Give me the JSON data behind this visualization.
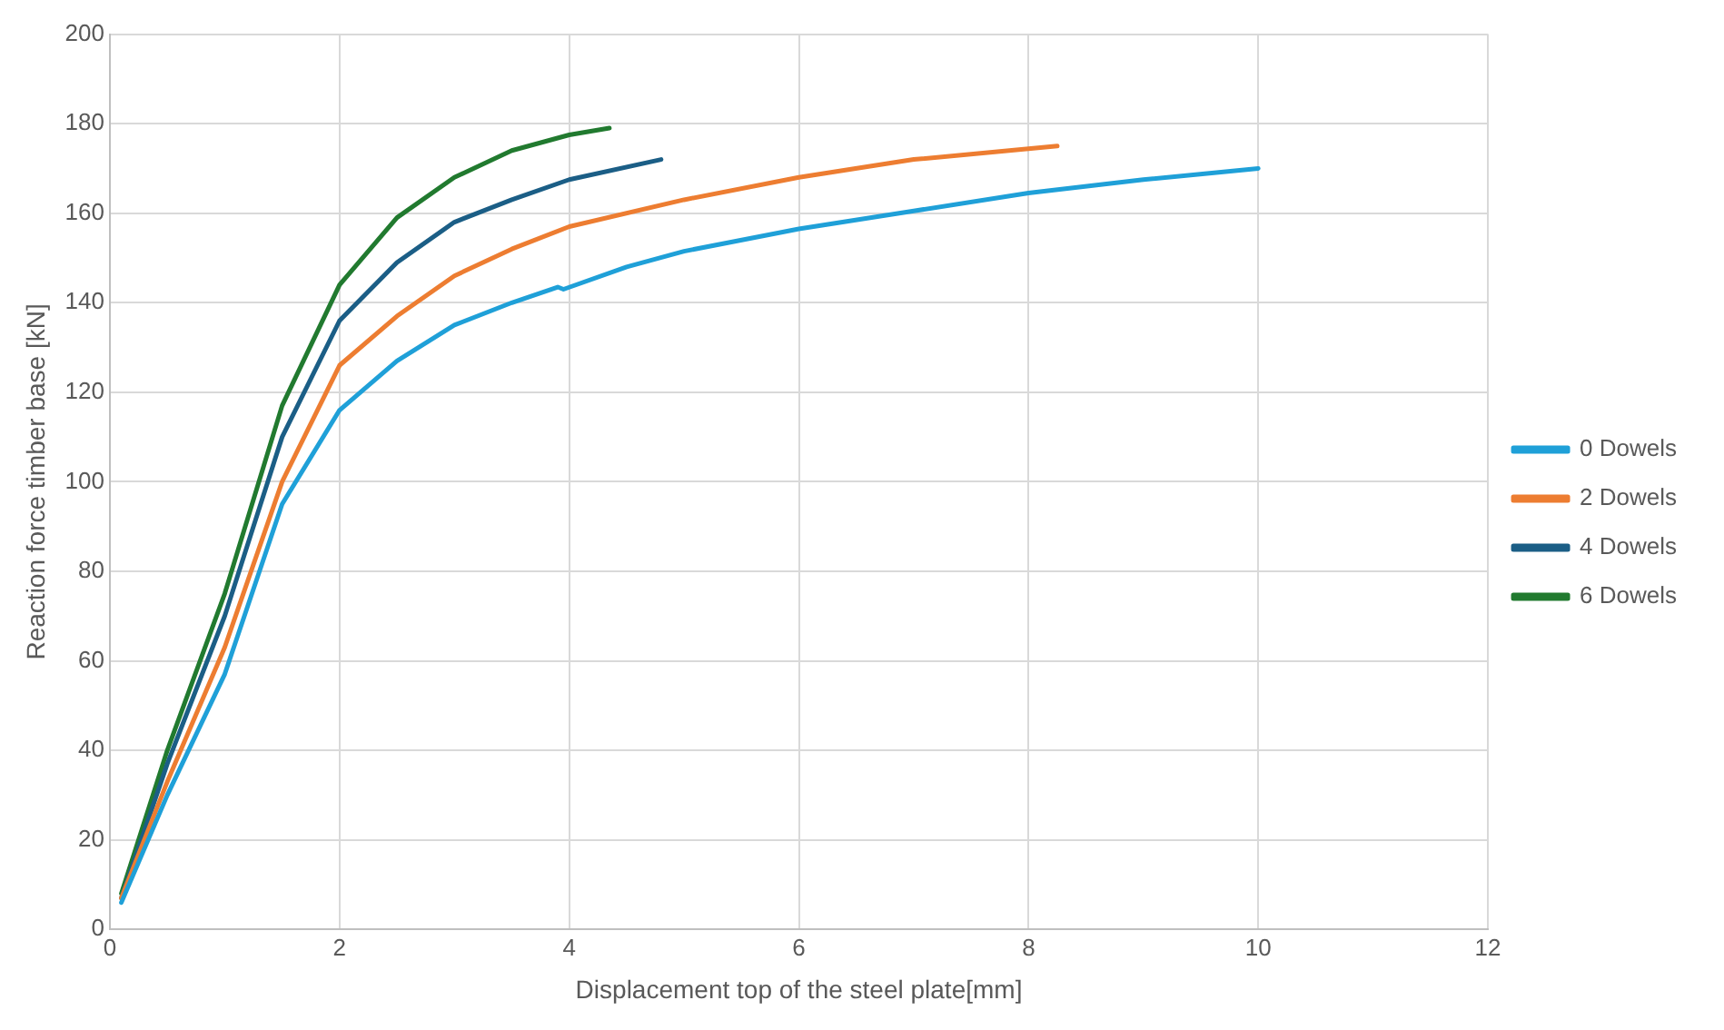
{
  "chart_data": {
    "type": "line",
    "xlabel": "Displacement top of the steel plate[mm]",
    "ylabel": "Reaction force timber base [kN]",
    "xlim": [
      0,
      12
    ],
    "xticks": [
      0,
      2,
      4,
      6,
      8,
      10,
      12
    ],
    "ylim": [
      0,
      200
    ],
    "yticks": [
      0,
      20,
      40,
      60,
      80,
      100,
      120,
      140,
      160,
      180,
      200
    ],
    "grid": true,
    "legend": "right",
    "marker": "none",
    "line_style": "solid",
    "series": [
      {
        "name": "0 Dowels",
        "color": "#1fa0d8",
        "x": [
          0.1,
          0.5,
          1,
          1.5,
          2,
          2.5,
          3,
          3.5,
          3.9,
          3.95,
          4.5,
          5,
          6,
          7,
          8,
          9,
          10
        ],
        "values": [
          6,
          30,
          57,
          95,
          116,
          127,
          135,
          140,
          143.5,
          143,
          148,
          151.5,
          156.5,
          160.5,
          164.5,
          167.5,
          170
        ]
      },
      {
        "name": "2 Dowels",
        "color": "#ed7d31",
        "x": [
          0.1,
          0.5,
          1,
          1.5,
          2,
          2.5,
          3,
          3.5,
          4,
          5,
          6,
          7,
          8.25
        ],
        "values": [
          7,
          33,
          63,
          100,
          126,
          137,
          146,
          152,
          157,
          163,
          168,
          172,
          175
        ]
      },
      {
        "name": "4 Dowels",
        "color": "#1b5e86",
        "x": [
          0.1,
          0.5,
          1,
          1.5,
          2,
          2.5,
          3,
          3.5,
          4,
          4.8
        ],
        "values": [
          7,
          37,
          70,
          110,
          136,
          149,
          158,
          163,
          167.5,
          172
        ]
      },
      {
        "name": "6 Dowels",
        "color": "#217a2f",
        "x": [
          0.1,
          0.5,
          1,
          1.5,
          2,
          2.5,
          3,
          3.5,
          4,
          4.35
        ],
        "values": [
          8,
          40,
          75,
          117,
          144,
          159,
          168,
          174,
          177.5,
          179
        ]
      }
    ]
  }
}
